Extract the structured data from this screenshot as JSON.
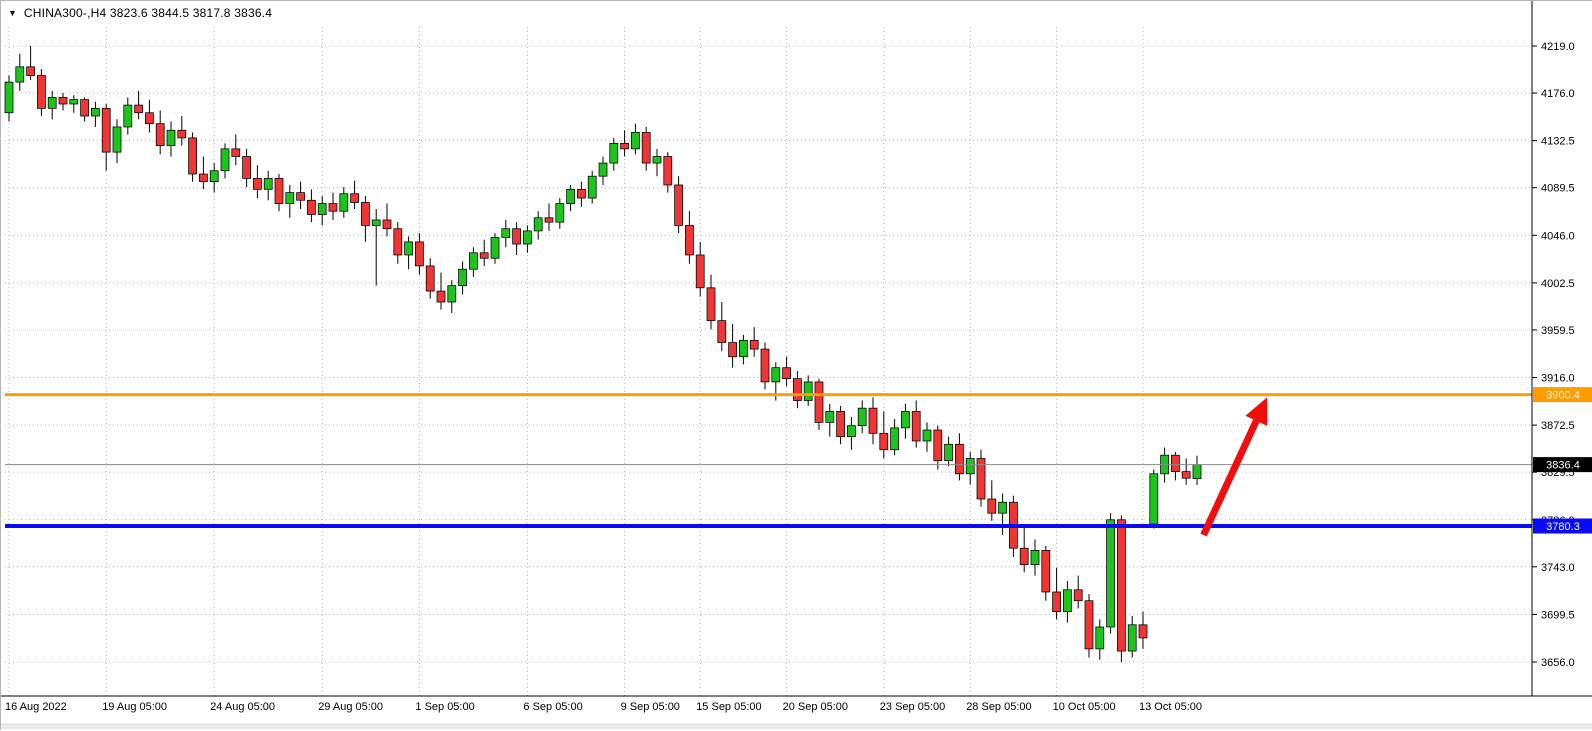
{
  "window": {
    "dropdown_icon": "▼",
    "title_text": "CHINA300-,H4 3823.6 3844.5 3817.8 3836.4"
  },
  "chart_data": {
    "type": "candlestick",
    "symbol": "CHINA300-",
    "timeframe": "H4",
    "ohlc_display": {
      "open": "3823.6",
      "high": "3844.5",
      "low": "3817.8",
      "close": "3836.4"
    },
    "price_range": {
      "top": 4219.0,
      "bottom": 3656.0
    },
    "price_axis_labels": [
      "4219.0",
      "4176.0",
      "4132.5",
      "4089.5",
      "4046.0",
      "4002.5",
      "3959.5",
      "3916.0",
      "3872.5",
      "3829.5",
      "3786.0",
      "3743.0",
      "3699.5",
      "3656.0"
    ],
    "time_axis_labels": [
      {
        "label": "16 Aug 2022",
        "candle_index": 0
      },
      {
        "label": "19 Aug 05:00",
        "candle_index": 9
      },
      {
        "label": "24 Aug 05:00",
        "candle_index": 19
      },
      {
        "label": "29 Aug 05:00",
        "candle_index": 29
      },
      {
        "label": "1 Sep 05:00",
        "candle_index": 38
      },
      {
        "label": "6 Sep 05:00",
        "candle_index": 48
      },
      {
        "label": "9 Sep 05:00",
        "candle_index": 57
      },
      {
        "label": "15 Sep 05:00",
        "candle_index": 64
      },
      {
        "label": "20 Sep 05:00",
        "candle_index": 72
      },
      {
        "label": "23 Sep 05:00",
        "candle_index": 81
      },
      {
        "label": "28 Sep 05:00",
        "candle_index": 89
      },
      {
        "label": "10 Oct 05:00",
        "candle_index": 97
      },
      {
        "label": "13 Oct 05:00",
        "candle_index": 105
      }
    ],
    "candles": [
      [
        4158,
        4192,
        4150,
        4186
      ],
      [
        4186,
        4212,
        4178,
        4200
      ],
      [
        4200,
        4219,
        4188,
        4192
      ],
      [
        4192,
        4198,
        4155,
        4162
      ],
      [
        4162,
        4178,
        4152,
        4172
      ],
      [
        4172,
        4176,
        4160,
        4166
      ],
      [
        4166,
        4174,
        4158,
        4170
      ],
      [
        4170,
        4172,
        4150,
        4155
      ],
      [
        4155,
        4168,
        4145,
        4162
      ],
      [
        4162,
        4166,
        4105,
        4122
      ],
      [
        4122,
        4152,
        4112,
        4145
      ],
      [
        4145,
        4172,
        4138,
        4165
      ],
      [
        4165,
        4178,
        4152,
        4158
      ],
      [
        4158,
        4170,
        4140,
        4148
      ],
      [
        4148,
        4160,
        4120,
        4128
      ],
      [
        4128,
        4150,
        4118,
        4142
      ],
      [
        4142,
        4155,
        4128,
        4135
      ],
      [
        4135,
        4140,
        4095,
        4102
      ],
      [
        4102,
        4118,
        4088,
        4095
      ],
      [
        4095,
        4112,
        4085,
        4105
      ],
      [
        4105,
        4130,
        4098,
        4125
      ],
      [
        4125,
        4138,
        4110,
        4118
      ],
      [
        4118,
        4125,
        4090,
        4098
      ],
      [
        4098,
        4110,
        4080,
        4088
      ],
      [
        4088,
        4105,
        4078,
        4098
      ],
      [
        4098,
        4102,
        4068,
        4075
      ],
      [
        4075,
        4092,
        4062,
        4085
      ],
      [
        4085,
        4095,
        4070,
        4078
      ],
      [
        4078,
        4088,
        4058,
        4065
      ],
      [
        4065,
        4082,
        4055,
        4075
      ],
      [
        4075,
        4085,
        4060,
        4068
      ],
      [
        4068,
        4090,
        4062,
        4084
      ],
      [
        4084,
        4096,
        4070,
        4076
      ],
      [
        4076,
        4082,
        4040,
        4055
      ],
      [
        4055,
        4070,
        4000,
        4060
      ],
      [
        4060,
        4075,
        4045,
        4052
      ],
      [
        4052,
        4058,
        4020,
        4028
      ],
      [
        4028,
        4045,
        4015,
        4040
      ],
      [
        4040,
        4048,
        4010,
        4018
      ],
      [
        4018,
        4025,
        3988,
        3995
      ],
      [
        3995,
        4012,
        3978,
        3985
      ],
      [
        3985,
        4005,
        3975,
        4000
      ],
      [
        4000,
        4022,
        3992,
        4015
      ],
      [
        4015,
        4035,
        4008,
        4030
      ],
      [
        4030,
        4042,
        4018,
        4025
      ],
      [
        4025,
        4048,
        4020,
        4044
      ],
      [
        4044,
        4060,
        4035,
        4052
      ],
      [
        4052,
        4058,
        4028,
        4038
      ],
      [
        4038,
        4055,
        4030,
        4050
      ],
      [
        4050,
        4068,
        4042,
        4062
      ],
      [
        4062,
        4075,
        4050,
        4058
      ],
      [
        4058,
        4080,
        4052,
        4075
      ],
      [
        4075,
        4092,
        4068,
        4088
      ],
      [
        4088,
        4095,
        4072,
        4080
      ],
      [
        4080,
        4105,
        4075,
        4100
      ],
      [
        4100,
        4118,
        4092,
        4112
      ],
      [
        4112,
        4135,
        4105,
        4130
      ],
      [
        4130,
        4142,
        4118,
        4125
      ],
      [
        4125,
        4148,
        4120,
        4140
      ],
      [
        4140,
        4145,
        4105,
        4112
      ],
      [
        4112,
        4125,
        4100,
        4118
      ],
      [
        4118,
        4122,
        4085,
        4092
      ],
      [
        4092,
        4100,
        4048,
        4055
      ],
      [
        4055,
        4068,
        4020,
        4028
      ],
      [
        4028,
        4040,
        3990,
        3998
      ],
      [
        3998,
        4010,
        3960,
        3968
      ],
      [
        3968,
        3985,
        3940,
        3948
      ],
      [
        3948,
        3965,
        3925,
        3935
      ],
      [
        3935,
        3955,
        3928,
        3950
      ],
      [
        3950,
        3962,
        3935,
        3942
      ],
      [
        3942,
        3948,
        3905,
        3912
      ],
      [
        3912,
        3930,
        3895,
        3925
      ],
      [
        3925,
        3935,
        3908,
        3915
      ],
      [
        3915,
        3922,
        3888,
        3895
      ],
      [
        3895,
        3918,
        3890,
        3912
      ],
      [
        3912,
        3915,
        3868,
        3875
      ],
      [
        3875,
        3892,
        3862,
        3885
      ],
      [
        3885,
        3890,
        3855,
        3862
      ],
      [
        3862,
        3880,
        3850,
        3872
      ],
      [
        3872,
        3895,
        3865,
        3888
      ],
      [
        3888,
        3898,
        3855,
        3865
      ],
      [
        3865,
        3885,
        3842,
        3850
      ],
      [
        3850,
        3878,
        3845,
        3870
      ],
      [
        3870,
        3892,
        3860,
        3885
      ],
      [
        3885,
        3895,
        3852,
        3858
      ],
      [
        3858,
        3875,
        3848,
        3868
      ],
      [
        3868,
        3872,
        3832,
        3840
      ],
      [
        3840,
        3862,
        3835,
        3855
      ],
      [
        3855,
        3865,
        3822,
        3828
      ],
      [
        3828,
        3848,
        3818,
        3842
      ],
      [
        3842,
        3850,
        3798,
        3805
      ],
      [
        3805,
        3822,
        3785,
        3792
      ],
      [
        3792,
        3810,
        3772,
        3802
      ],
      [
        3802,
        3808,
        3752,
        3760
      ],
      [
        3760,
        3782,
        3738,
        3745
      ],
      [
        3745,
        3768,
        3735,
        3758
      ],
      [
        3758,
        3762,
        3712,
        3720
      ],
      [
        3720,
        3742,
        3695,
        3702
      ],
      [
        3702,
        3730,
        3692,
        3722
      ],
      [
        3722,
        3735,
        3705,
        3712
      ],
      [
        3712,
        3718,
        3660,
        3668
      ],
      [
        3668,
        3695,
        3658,
        3688
      ],
      [
        3688,
        3792,
        3682,
        3786
      ],
      [
        3786,
        3790,
        3656,
        3666
      ],
      [
        3666,
        3698,
        3660,
        3690
      ],
      [
        3690,
        3702,
        3668,
        3678
      ],
      [
        3782,
        3832,
        3778,
        3828
      ],
      [
        3828,
        3852,
        3820,
        3845
      ],
      [
        3845,
        3848,
        3822,
        3830
      ],
      [
        3830,
        3842,
        3818,
        3824
      ],
      [
        3823.6,
        3844.5,
        3817.8,
        3836.4
      ]
    ],
    "levels": [
      {
        "name": "resistance-line",
        "price": 3900.4,
        "label": "3900.4",
        "color": "#FF9C00",
        "width": 3,
        "tag_bg": "#FF9C00",
        "tag_fg": "#ffffff"
      },
      {
        "name": "support-line",
        "price": 3780.3,
        "label": "3780.3",
        "color": "#0A0AF5",
        "width": 4,
        "tag_bg": "#0A0AF5",
        "tag_fg": "#ffffff"
      },
      {
        "name": "current-price-line",
        "price": 3836.4,
        "label": "3836.4",
        "color": "#8a8a8a",
        "width": 1,
        "tag_bg": "#000000",
        "tag_fg": "#ffffff"
      }
    ],
    "annotation_arrow": {
      "from": {
        "candle": 110.6,
        "price": 3772
      },
      "to": {
        "candle": 116.5,
        "price": 3898
      },
      "color": "#F20C0C"
    },
    "colors": {
      "up": "#1EC41E",
      "down": "#F03535",
      "wick": "#000000",
      "body_outline": "#000000",
      "grid": "#b3b3b3",
      "background": "#FFFFFF",
      "axis_text": "#000000",
      "axis_line": "#000000"
    }
  }
}
